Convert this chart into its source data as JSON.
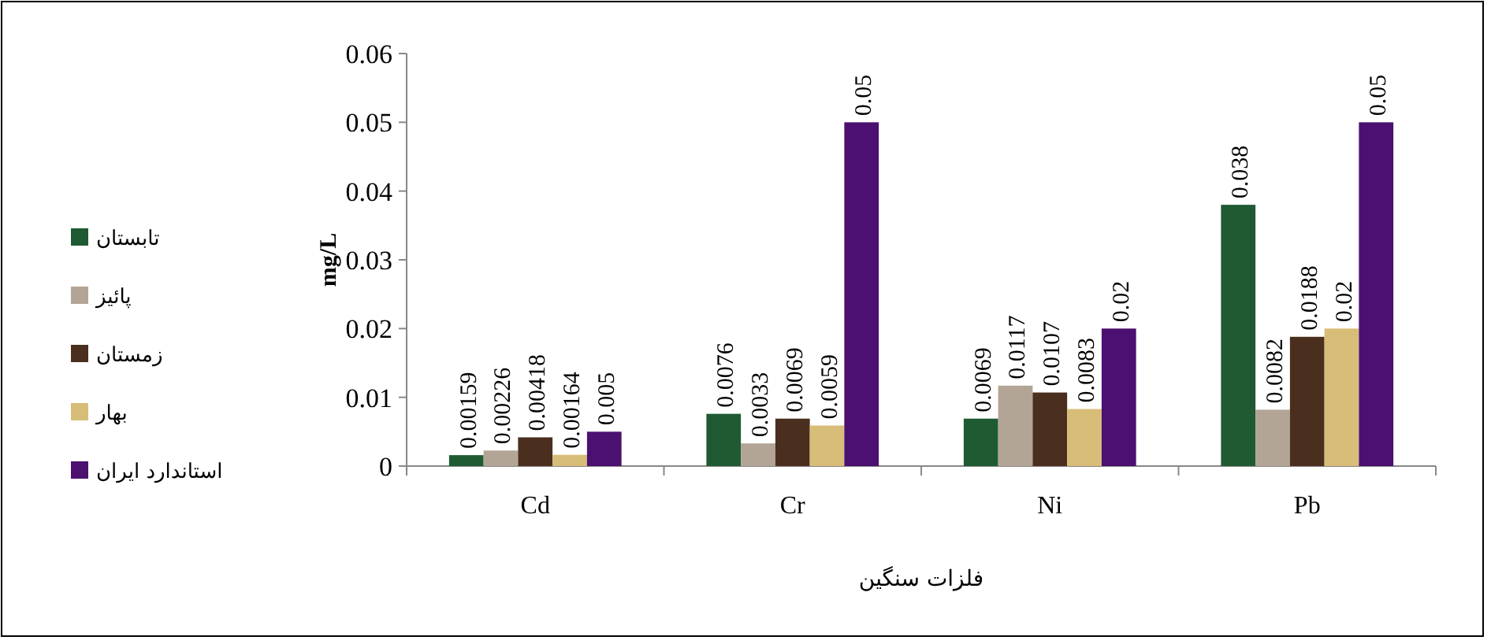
{
  "chart_data": {
    "type": "bar",
    "xlabel": "فلزات سنگین",
    "ylabel": "mg/L",
    "categories": [
      "Cd",
      "Cr",
      "Ni",
      "Pb"
    ],
    "series": [
      {
        "name": "تابستان",
        "color": "#1f5a33",
        "values": [
          0.00159,
          0.0076,
          0.0069,
          0.038
        ]
      },
      {
        "name": "پائیز",
        "color": "#b3a596",
        "values": [
          0.00226,
          0.0033,
          0.0117,
          0.0082
        ]
      },
      {
        "name": "زمستان",
        "color": "#4a2f1e",
        "values": [
          0.00418,
          0.0069,
          0.0107,
          0.0188
        ]
      },
      {
        "name": "بهار",
        "color": "#d8bd78",
        "values": [
          0.00164,
          0.0059,
          0.0083,
          0.02
        ]
      },
      {
        "name": "استاندارد ایران",
        "color": "#4b1070",
        "values": [
          0.005,
          0.05,
          0.02,
          0.05
        ]
      }
    ],
    "ylim": [
      0,
      0.06
    ],
    "yticks": [
      0,
      0.01,
      0.02,
      0.03,
      0.04,
      0.05,
      0.06
    ],
    "data_labels": true,
    "grid": false,
    "legend": "left"
  }
}
